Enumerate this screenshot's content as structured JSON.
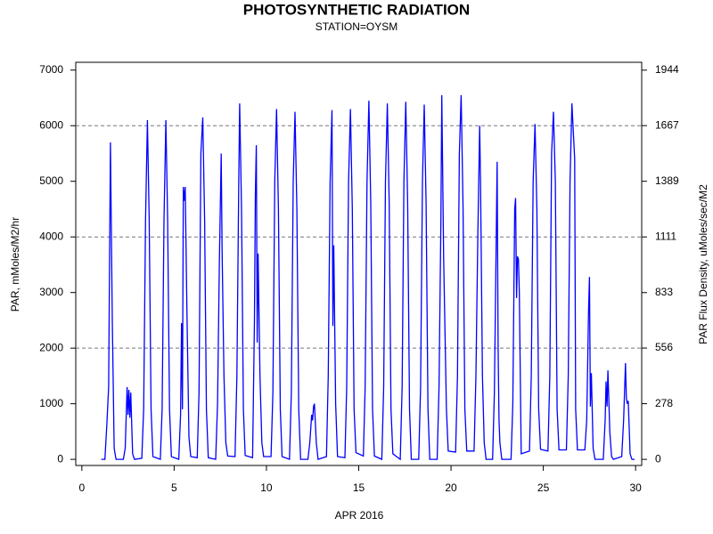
{
  "chart_data": {
    "type": "line",
    "title": "PHOTOSYNTHETIC RADIATION",
    "subtitle": "STATION=OYSM",
    "xlabel": "APR 2016",
    "ylabel": "PAR, mMoles/M2/hr",
    "y2label": "PAR Flux Density, uMoles/sec/M2",
    "xlim": [
      -0.33,
      30.33
    ],
    "xticks": [
      0,
      5,
      10,
      15,
      20,
      25,
      30
    ],
    "ylim": [
      -110,
      7140
    ],
    "yticks": [
      0,
      1000,
      2000,
      3000,
      4000,
      5000,
      6000,
      7000
    ],
    "y2lim": [
      -30.56,
      1983.3
    ],
    "y2ticks": [
      0,
      278,
      556,
      833,
      1111,
      1389,
      1667,
      1944
    ],
    "grid_values": [
      2000,
      4000,
      6000
    ],
    "color": "#0000ff",
    "x": [
      1.05,
      1.25,
      1.35,
      1.45,
      1.55,
      1.65,
      1.75,
      1.85,
      2.25,
      2.35,
      2.45,
      2.5,
      2.55,
      2.6,
      2.65,
      2.75,
      2.85,
      3.25,
      3.35,
      3.45,
      3.55,
      3.65,
      3.75,
      3.85,
      4.25,
      4.35,
      4.45,
      4.55,
      4.65,
      4.75,
      4.85,
      5.25,
      5.35,
      5.4,
      5.45,
      5.5,
      5.55,
      5.6,
      5.7,
      5.8,
      5.9,
      6.25,
      6.35,
      6.45,
      6.55,
      6.65,
      6.75,
      6.85,
      7.25,
      7.35,
      7.45,
      7.55,
      7.6,
      7.7,
      7.8,
      7.9,
      8.3,
      8.4,
      8.5,
      8.55,
      8.65,
      8.75,
      8.85,
      9.25,
      9.35,
      9.4,
      9.45,
      9.5,
      9.55,
      9.65,
      9.75,
      9.85,
      10.25,
      10.35,
      10.45,
      10.55,
      10.65,
      10.75,
      10.85,
      11.25,
      11.35,
      11.45,
      11.55,
      11.65,
      11.75,
      11.85,
      12.25,
      12.35,
      12.45,
      12.5,
      12.55,
      12.6,
      12.7,
      12.8,
      13.25,
      13.35,
      13.45,
      13.55,
      13.6,
      13.65,
      13.75,
      13.85,
      14.25,
      14.35,
      14.45,
      14.55,
      14.65,
      14.75,
      14.85,
      15.25,
      15.35,
      15.45,
      15.55,
      15.65,
      15.75,
      15.85,
      16.25,
      16.35,
      16.45,
      16.55,
      16.65,
      16.75,
      16.85,
      17.25,
      17.35,
      17.45,
      17.55,
      17.65,
      17.75,
      17.85,
      18.25,
      18.35,
      18.45,
      18.55,
      18.65,
      18.75,
      18.85,
      19.25,
      19.35,
      19.45,
      19.5,
      19.6,
      19.75,
      19.85,
      20.25,
      20.35,
      20.45,
      20.55,
      20.65,
      20.75,
      20.85,
      21.25,
      21.35,
      21.45,
      21.55,
      21.6,
      21.7,
      21.8,
      21.9,
      22.25,
      22.35,
      22.45,
      22.5,
      22.55,
      22.6,
      22.65,
      22.75,
      23.25,
      23.35,
      23.45,
      23.5,
      23.55,
      23.6,
      23.65,
      23.7,
      23.8,
      24.25,
      24.35,
      24.45,
      24.55,
      24.65,
      24.75,
      24.85,
      25.25,
      25.35,
      25.45,
      25.55,
      25.65,
      25.75,
      25.85,
      26.25,
      26.35,
      26.45,
      26.55,
      26.7,
      26.75,
      26.85,
      27.25,
      27.35,
      27.45,
      27.5,
      27.55,
      27.6,
      27.7,
      27.8,
      28.25,
      28.35,
      28.4,
      28.45,
      28.5,
      28.6,
      28.7,
      28.8,
      29.25,
      29.35,
      29.45,
      29.5,
      29.55,
      29.6,
      29.7,
      29.8,
      29.95
    ],
    "values": [
      0,
      0,
      600,
      1300,
      5700,
      2500,
      200,
      0,
      0,
      200,
      1300,
      800,
      1250,
      750,
      1200,
      100,
      0,
      20,
      900,
      4300,
      6100,
      4300,
      900,
      50,
      0,
      900,
      4300,
      6100,
      4300,
      900,
      50,
      0,
      800,
      2450,
      900,
      4900,
      4650,
      4900,
      2500,
      400,
      50,
      30,
      1200,
      5500,
      6150,
      4300,
      900,
      30,
      0,
      1000,
      3500,
      5500,
      3750,
      1500,
      300,
      60,
      50,
      1500,
      5000,
      6400,
      4500,
      900,
      70,
      30,
      2500,
      4750,
      5650,
      2100,
      3700,
      1500,
      300,
      50,
      50,
      1200,
      5000,
      6300,
      4500,
      900,
      50,
      0,
      1200,
      5000,
      6250,
      4500,
      900,
      0,
      0,
      300,
      800,
      700,
      950,
      1000,
      300,
      0,
      50,
      1500,
      5000,
      6280,
      2400,
      3850,
      1000,
      50,
      30,
      1300,
      5000,
      6300,
      4500,
      900,
      120,
      60,
      1300,
      5000,
      6450,
      4600,
      900,
      60,
      0,
      1300,
      5000,
      6400,
      4600,
      900,
      100,
      0,
      1300,
      5000,
      6430,
      4600,
      900,
      0,
      0,
      1300,
      5000,
      6380,
      4600,
      900,
      0,
      0,
      1300,
      4300,
      6550,
      3600,
      900,
      150,
      130,
      1500,
      5500,
      6550,
      4600,
      900,
      150,
      150,
      1500,
      4000,
      6000,
      4950,
      1500,
      300,
      0,
      0,
      1200,
      4000,
      5350,
      2000,
      700,
      300,
      0,
      0,
      1000,
      4500,
      4700,
      2900,
      3650,
      3600,
      3000,
      100,
      150,
      1500,
      5000,
      6030,
      4500,
      900,
      180,
      150,
      1500,
      5500,
      6250,
      5000,
      900,
      170,
      170,
      1500,
      5000,
      6400,
      5400,
      900,
      170,
      170,
      700,
      2700,
      3280,
      950,
      1550,
      200,
      0,
      0,
      700,
      1400,
      950,
      1600,
      500,
      50,
      0,
      50,
      700,
      1730,
      1100,
      1000,
      1050,
      100,
      0,
      0
    ]
  }
}
